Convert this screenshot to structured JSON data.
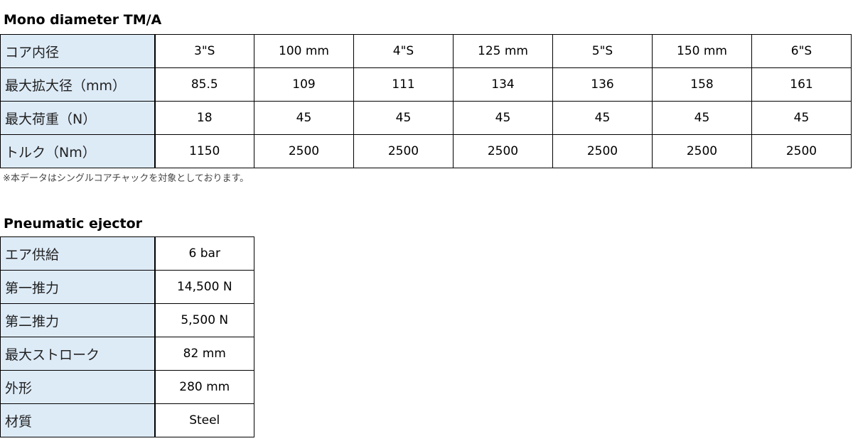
{
  "section1": {
    "title": "Mono diameter TM/A",
    "rows": [
      {
        "label": "コア内径",
        "values": [
          "3\"S",
          "100 mm",
          "4\"S",
          "125 mm",
          "5\"S",
          "150 mm",
          "6\"S"
        ]
      },
      {
        "label": "最大拡大径（mm）",
        "values": [
          "85.5",
          "109",
          "111",
          "134",
          "136",
          "158",
          "161"
        ]
      },
      {
        "label": "最大荷重（N）",
        "values": [
          "18",
          "45",
          "45",
          "45",
          "45",
          "45",
          "45"
        ]
      },
      {
        "label": "トルク（Nm）",
        "values": [
          "1150",
          "2500",
          "2500",
          "2500",
          "2500",
          "2500",
          "2500"
        ]
      }
    ],
    "note": "※本データはシングルコアチャックを対象としております。"
  },
  "section2": {
    "title": "Pneumatic ejector",
    "rows": [
      {
        "label": "エア供給",
        "value": "6 bar"
      },
      {
        "label": "第一推力",
        "value": "14,500 N"
      },
      {
        "label": "第二推力",
        "value": "5,500 N"
      },
      {
        "label": "最大ストローク",
        "value": "82 mm"
      },
      {
        "label": "外形",
        "value": "280 mm"
      },
      {
        "label": "材質",
        "value": "Steel"
      }
    ]
  },
  "colors": {
    "label_bg": "#ddebf7"
  }
}
